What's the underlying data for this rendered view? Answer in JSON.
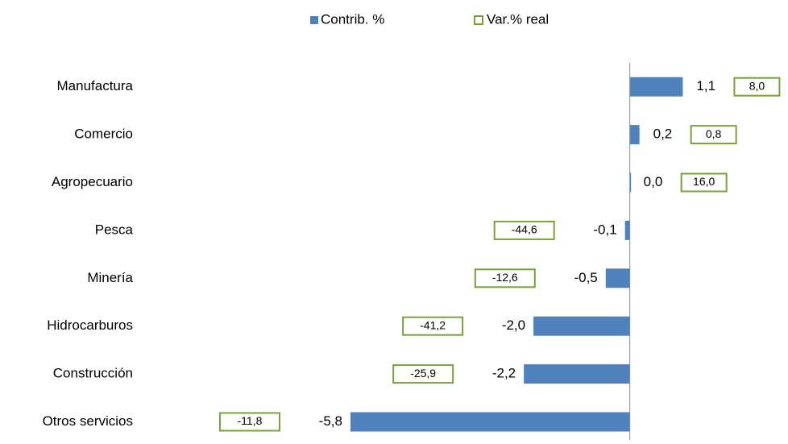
{
  "chart_data": {
    "type": "bar",
    "orientation": "horizontal",
    "categories": [
      "Manufactura",
      "Comercio",
      "Agropecuario",
      "Pesca",
      "Minería",
      "Hidrocarburos",
      "Construcción",
      "Otros servicios"
    ],
    "series": [
      {
        "name": "Contrib. %",
        "color": "#4f81bd",
        "values": [
          1.1,
          0.2,
          0.0,
          -0.1,
          -0.5,
          -2.0,
          -2.2,
          -5.8
        ],
        "value_labels": [
          "1,1",
          "0,2",
          "0,0",
          "-0,1",
          "-0,5",
          "-2,0",
          "-2,2",
          "-5,8"
        ]
      },
      {
        "name": "Var.% real",
        "color": "#77a237",
        "values": [
          8.0,
          0.8,
          16.0,
          -44.6,
          -12.6,
          -41.2,
          -25.9,
          -11.8
        ],
        "value_labels": [
          "8,0",
          "0,8",
          "16,0",
          "-44,6",
          "-12,6",
          "-41,2",
          "-25,9",
          "-11,8"
        ]
      }
    ],
    "xlim": [
      -6,
      3
    ]
  }
}
